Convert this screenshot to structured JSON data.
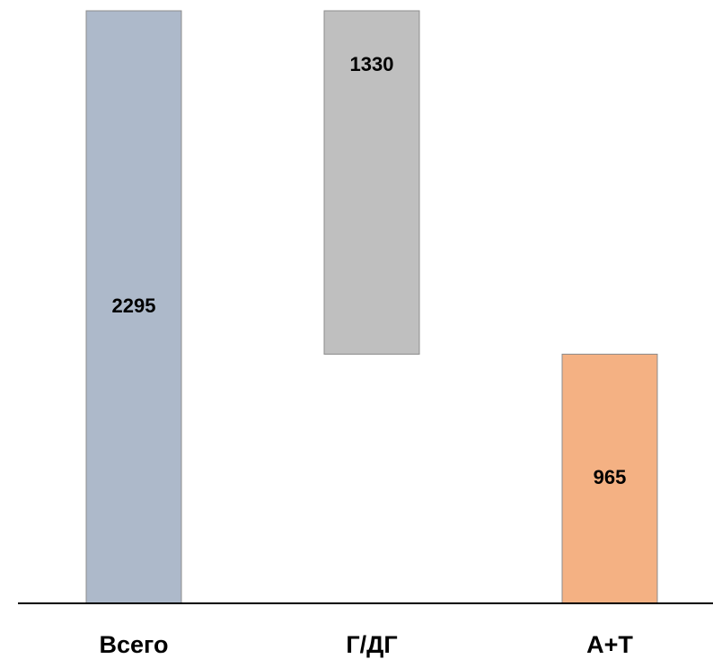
{
  "chart_data": {
    "type": "waterfall",
    "categories": [
      "Всего",
      "Г/ДГ",
      "А+Т"
    ],
    "values": [
      2295,
      1330,
      965
    ],
    "colors": [
      "#adb9ca",
      "#bfbfbf",
      "#f4b183"
    ]
  }
}
